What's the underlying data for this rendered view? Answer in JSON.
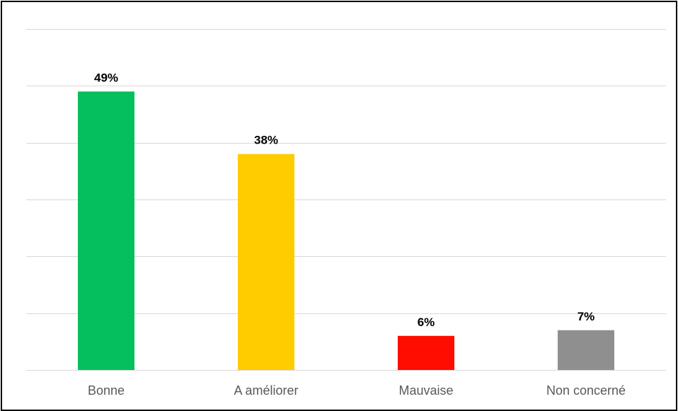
{
  "chart_data": {
    "type": "bar",
    "categories": [
      "Bonne",
      "A améliorer",
      "Mauvaise",
      "Non concerné"
    ],
    "values": [
      49,
      38,
      6,
      7
    ],
    "data_labels": [
      "49%",
      "38%",
      "6%",
      "7%"
    ],
    "colors": [
      "#05BF5E",
      "#FFCC00",
      "#FF0D00",
      "#8F8F8F"
    ],
    "ylim": [
      0,
      60
    ],
    "grid": true,
    "legend": "none"
  }
}
